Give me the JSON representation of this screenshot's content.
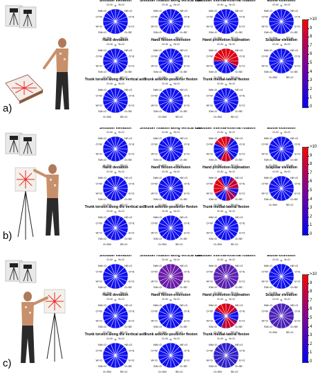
{
  "panels": [
    {
      "label": "a)",
      "scene": "tabletop",
      "charts": [
        {
          "title": "Shoulder elevation",
          "highlight": []
        },
        {
          "title": "Shoulder rotation along vertical axis",
          "highlight": []
        },
        {
          "title": "Shoulder internal-external rotation",
          "highlight": []
        },
        {
          "title": "Elbow extension",
          "highlight": []
        },
        {
          "title": "Hand deviation",
          "highlight": []
        },
        {
          "title": "Hand flexion-extension",
          "highlight": []
        },
        {
          "title": "Hand promotion-supination",
          "highlight": [
            {
              "from": 270,
              "to": 450,
              "color": "#e00010"
            },
            {
              "from": 90,
              "to": 120,
              "color": "#c00030"
            }
          ]
        },
        {
          "title": "Scapular elevation",
          "highlight": []
        },
        {
          "title": "Trunk torsion along the vertical axis",
          "highlight": []
        },
        {
          "title": "Trunk anterior-posterior flexion",
          "highlight": []
        },
        {
          "title": "Trunk medial-lateral flexion",
          "highlight": []
        }
      ]
    },
    {
      "label": "b)",
      "scene": "easel",
      "charts": [
        {
          "title": "Shoulder elevation",
          "highlight": []
        },
        {
          "title": "Shoulder rotation along vertical axis",
          "highlight": []
        },
        {
          "title": "Shoulder internal-external rotation",
          "highlight": [
            {
              "from": 300,
              "to": 360,
              "color": "#e00010"
            },
            {
              "from": 0,
              "to": 30,
              "color": "#c00030"
            },
            {
              "from": 150,
              "to": 210,
              "color": "#d00020"
            }
          ]
        },
        {
          "title": "Elbow extension",
          "highlight": []
        },
        {
          "title": "Hand deviation",
          "highlight": []
        },
        {
          "title": "Hand flexion-extension",
          "highlight": []
        },
        {
          "title": "Hand promotion-supination",
          "highlight": [
            {
              "from": 240,
              "to": 330,
              "color": "#e00010"
            },
            {
              "from": 30,
              "to": 90,
              "color": "#c00030"
            },
            {
              "from": 120,
              "to": 180,
              "color": "#a00050"
            }
          ]
        },
        {
          "title": "Scapular elevation",
          "highlight": []
        },
        {
          "title": "Trunk torsion along the vertical axis",
          "highlight": []
        },
        {
          "title": "Trunk anterior-posterior flexion",
          "highlight": []
        },
        {
          "title": "Trunk medial-lateral flexion",
          "highlight": []
        }
      ]
    },
    {
      "label": "c)",
      "scene": "easel",
      "charts": [
        {
          "title": "Shoulder elevation",
          "highlight": []
        },
        {
          "title": "Shoulder rotation along vertical axis",
          "highlight": [
            {
              "from": 0,
              "to": 360,
              "color": "#6a1aa8"
            }
          ]
        },
        {
          "title": "Shoulder internal-external rotation",
          "highlight": [
            {
              "from": 0,
              "to": 360,
              "color": "#5a20b0"
            }
          ]
        },
        {
          "title": "Elbow extension",
          "highlight": []
        },
        {
          "title": "Hand deviation",
          "highlight": []
        },
        {
          "title": "Hand flexion-extension",
          "highlight": []
        },
        {
          "title": "Hand promotion-supination",
          "highlight": [
            {
              "from": 300,
              "to": 360,
              "color": "#e00010"
            },
            {
              "from": 0,
              "to": 60,
              "color": "#d00020"
            },
            {
              "from": 120,
              "to": 200,
              "color": "#c00030"
            }
          ]
        },
        {
          "title": "Scapular elevation",
          "highlight": [
            {
              "from": 0,
              "to": 360,
              "color": "#4a20b8"
            }
          ]
        },
        {
          "title": "Trunk torsion along the vertical axis",
          "highlight": []
        },
        {
          "title": "Trunk anterior-posterior flexion",
          "highlight": []
        },
        {
          "title": "Trunk medial-lateral flexion",
          "highlight": [
            {
              "from": 0,
              "to": 360,
              "color": "#3020c8"
            }
          ]
        }
      ]
    }
  ],
  "direction_labels": [
    "N",
    "N=O",
    "NE",
    "NE=O",
    "E",
    "E=O",
    "SE",
    "SE=O",
    "S",
    "S=O",
    "SW",
    "SW=O",
    "W",
    "W=O",
    "NW",
    "NW=O",
    "O=N",
    "O=NE",
    "O=E",
    "O=SE",
    "O=S",
    "O=SW",
    "O=W",
    "O=NW"
  ],
  "colorbar": {
    "ticks": [
      ">10",
      "9",
      "8",
      "7",
      "6",
      "5",
      "4",
      "3",
      "2",
      "1",
      "0"
    ],
    "colors": {
      "high": "#ff0000",
      "mid": "#7f00a0",
      "low": "#0000ff"
    }
  },
  "colors": {
    "base": "#1010f0",
    "spoke": "#ffffff"
  }
}
